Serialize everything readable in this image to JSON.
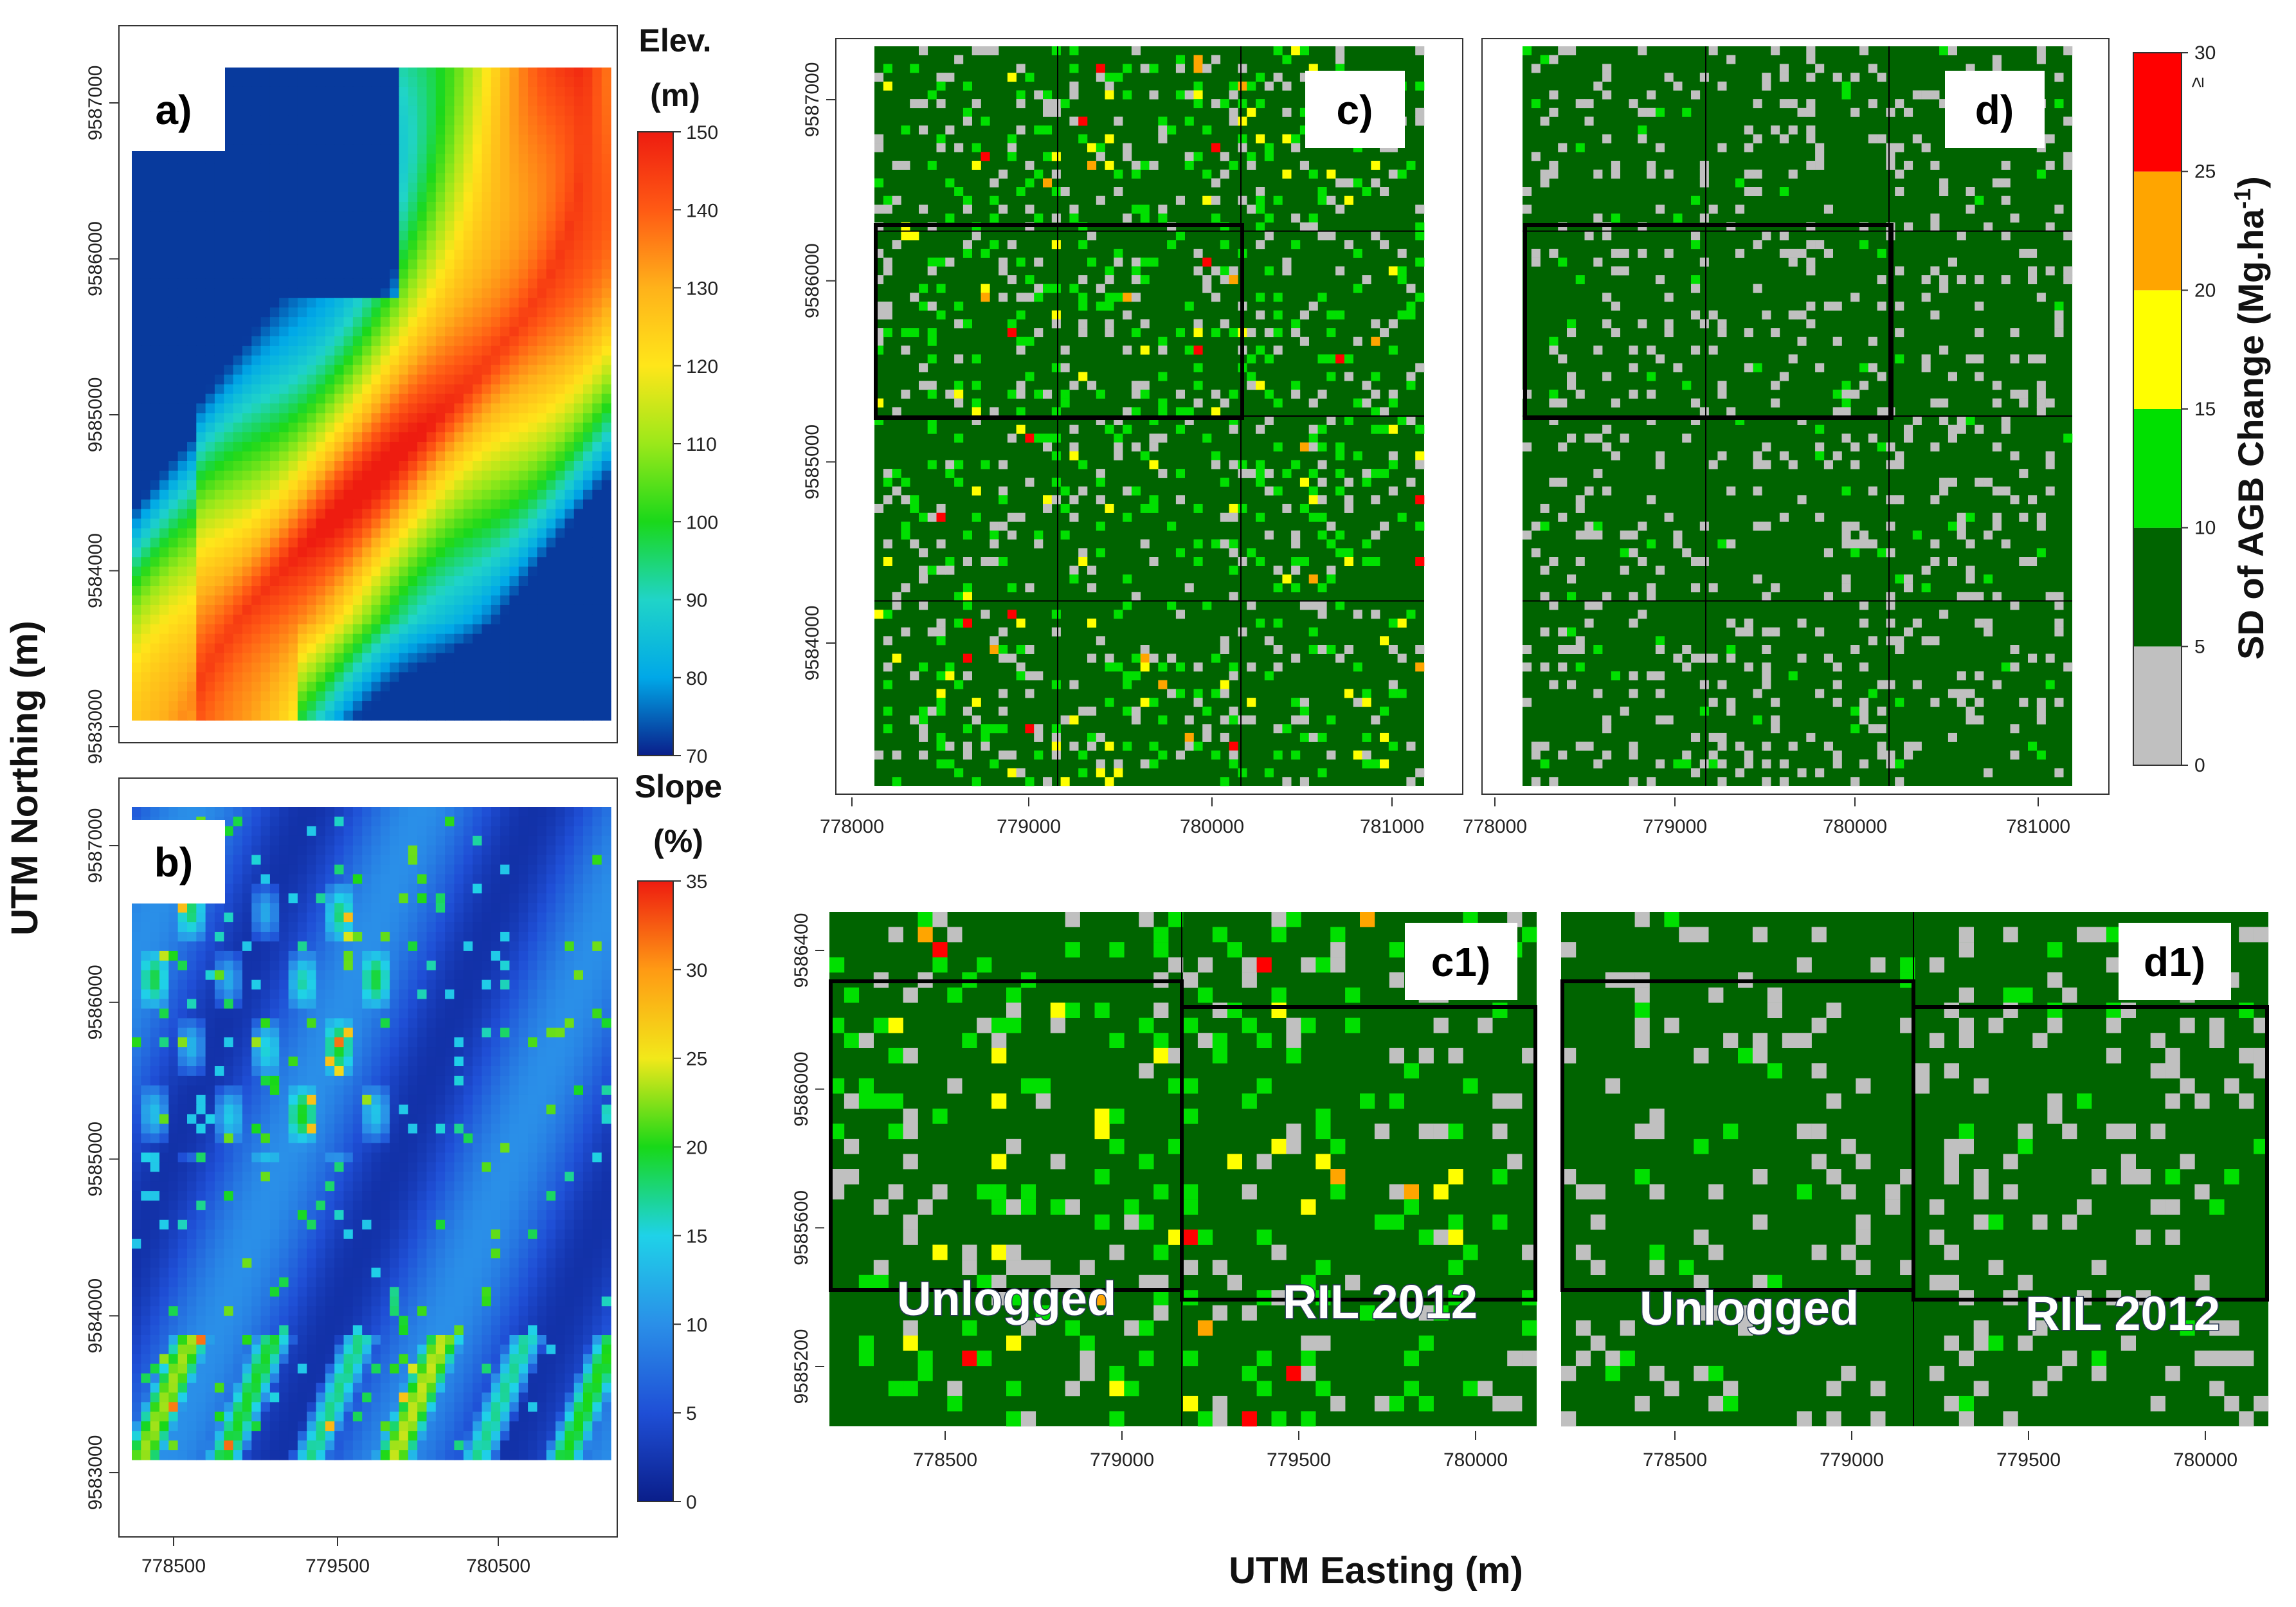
{
  "axis_labels": {
    "y": "UTM Northing (m)",
    "x": "UTM Easting (m)"
  },
  "chart_data": [
    {
      "panel": "a)",
      "type": "heatmap",
      "description": "Elevation raster",
      "legend_title": [
        "Elev.",
        "(m)"
      ],
      "colorbar_ticks": [
        "150",
        "140",
        "130",
        "120",
        "110",
        "100",
        "90",
        "80",
        "70"
      ],
      "colorbar_range": [
        70,
        150
      ],
      "colorbar_stops": [
        "#0a1e8a",
        "#00a8e8",
        "#20d4c8",
        "#1ad81a",
        "#9be81a",
        "#ffe61a",
        "#ffb21a",
        "#ff5a14",
        "#ee1c10"
      ],
      "y_ticks": [
        "9587000",
        "9586000",
        "9585000",
        "9584000",
        "9583000"
      ],
      "x_ticks": [
        "778500",
        "779500",
        "780500"
      ]
    },
    {
      "panel": "b)",
      "type": "heatmap",
      "description": "Slope raster",
      "legend_title": [
        "Slope",
        "(%)"
      ],
      "colorbar_ticks": [
        "35",
        "30",
        "25",
        "20",
        "15",
        "10",
        "5",
        "0"
      ],
      "colorbar_range": [
        0,
        35
      ],
      "colorbar_stops": [
        "#0a1e8a",
        "#1f4fd6",
        "#2a8fe8",
        "#1fd2e8",
        "#18d818",
        "#f2e81a",
        "#ff9a14",
        "#ee1c10"
      ],
      "y_ticks": [
        "9587000",
        "9586000",
        "9585000",
        "9584000",
        "9583000"
      ],
      "x_ticks": [
        "778500",
        "779500",
        "780500"
      ]
    },
    {
      "panel": "c)",
      "type": "heatmap",
      "description": "SD of AGB change, 4x3 block grid",
      "y_ticks": [
        "9587000",
        "9586000",
        "9585000",
        "9584000"
      ],
      "x_ticks": [
        "778000",
        "779000",
        "780000",
        "781000"
      ]
    },
    {
      "panel": "d)",
      "type": "heatmap",
      "description": "SD of AGB change, 4x3 block grid",
      "x_ticks": [
        "778000",
        "779000",
        "780000",
        "781000"
      ]
    },
    {
      "panel": "c1)",
      "type": "heatmap",
      "description": "Zoom of c)",
      "overlays": [
        "Unlogged",
        "RIL 2012"
      ],
      "y_ticks": [
        "9586400",
        "9586000",
        "9585600",
        "9585200"
      ],
      "x_ticks": [
        "778500",
        "779000",
        "779500",
        "780000"
      ]
    },
    {
      "panel": "d1)",
      "type": "heatmap",
      "description": "Zoom of d)",
      "overlays": [
        "Unlogged",
        "RIL 2012"
      ],
      "x_ticks": [
        "778500",
        "779000",
        "779500",
        "780000"
      ]
    },
    {
      "type": "legend",
      "title": "SD of AGB Change (Mg.ha",
      "title_sup": "-1",
      "title_end": ")",
      "classes": [
        {
          "range": [
            0,
            5
          ],
          "color": "#c0c0c0"
        },
        {
          "range": [
            5,
            10
          ],
          "color": "#006400"
        },
        {
          "range": [
            10,
            15
          ],
          "color": "#00e000"
        },
        {
          "range": [
            15,
            20
          ],
          "color": "#ffff00"
        },
        {
          "range": [
            20,
            25
          ],
          "color": "#ffa500"
        },
        {
          "range": [
            25,
            30
          ],
          "color": "#ff0000"
        }
      ],
      "ticks": [
        "30",
        "25",
        "20",
        "15",
        "10",
        "5",
        "0"
      ],
      "top_marker": "≥"
    }
  ]
}
